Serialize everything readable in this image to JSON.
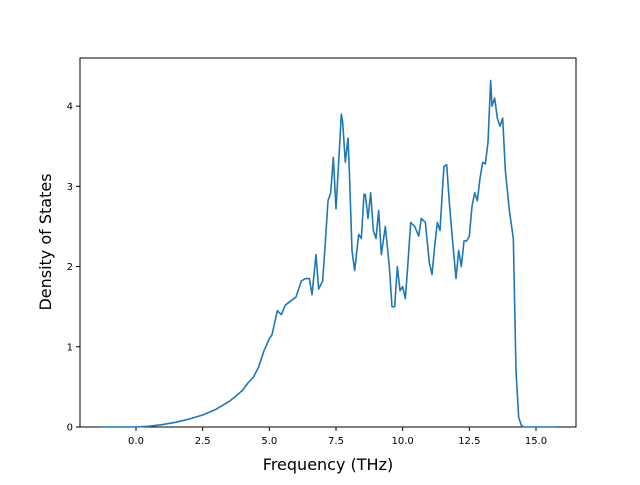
{
  "chart_data": {
    "type": "line",
    "title": "",
    "xlabel": "Frequency (THz)",
    "ylabel": "Density of States",
    "xlim": [
      -2.1,
      16.5
    ],
    "ylim": [
      0,
      4.6
    ],
    "xticks": [
      0,
      2.5,
      5,
      7.5,
      10,
      12.5,
      15
    ],
    "xtick_labels": [
      "0.0",
      "2.5",
      "5.0",
      "7.5",
      "10.0",
      "12.5",
      "15.0"
    ],
    "yticks": [
      0,
      1,
      2,
      3,
      4
    ],
    "ytick_labels": [
      "0",
      "1",
      "2",
      "3",
      "4"
    ],
    "grid": false,
    "series": [
      {
        "color": "#1f77b4",
        "x": [
          -1.3,
          -1.0,
          -0.5,
          0.0,
          0.5,
          1.0,
          1.5,
          2.0,
          2.5,
          3.0,
          3.5,
          3.8,
          4.0,
          4.2,
          4.4,
          4.6,
          4.8,
          5.0,
          5.1,
          5.2,
          5.3,
          5.45,
          5.6,
          5.8,
          6.0,
          6.2,
          6.35,
          6.5,
          6.6,
          6.75,
          6.85,
          7.0,
          7.1,
          7.2,
          7.3,
          7.4,
          7.5,
          7.6,
          7.7,
          7.75,
          7.85,
          7.95,
          8.0,
          8.1,
          8.2,
          8.35,
          8.45,
          8.55,
          8.6,
          8.7,
          8.8,
          8.9,
          9.0,
          9.1,
          9.2,
          9.35,
          9.5,
          9.6,
          9.7,
          9.8,
          9.9,
          10.0,
          10.1,
          10.2,
          10.3,
          10.45,
          10.6,
          10.7,
          10.85,
          11.0,
          11.1,
          11.2,
          11.3,
          11.4,
          11.5,
          11.55,
          11.65,
          11.75,
          11.85,
          12.0,
          12.1,
          12.2,
          12.3,
          12.4,
          12.5,
          12.6,
          12.7,
          12.8,
          12.9,
          13.0,
          13.1,
          13.2,
          13.3,
          13.35,
          13.45,
          13.55,
          13.65,
          13.75,
          13.85,
          14.0,
          14.15,
          14.25,
          14.35,
          14.45,
          14.55,
          14.7,
          15.0,
          15.4,
          15.8
        ],
        "y": [
          0,
          0,
          0,
          0,
          0.01,
          0.03,
          0.06,
          0.1,
          0.15,
          0.22,
          0.32,
          0.4,
          0.46,
          0.55,
          0.62,
          0.75,
          0.95,
          1.1,
          1.15,
          1.3,
          1.45,
          1.4,
          1.52,
          1.57,
          1.62,
          1.82,
          1.85,
          1.85,
          1.65,
          2.15,
          1.72,
          1.82,
          2.3,
          2.82,
          2.92,
          3.36,
          2.72,
          3.3,
          3.9,
          3.8,
          3.3,
          3.6,
          3.2,
          2.2,
          1.95,
          2.4,
          2.35,
          2.9,
          2.9,
          2.6,
          2.92,
          2.45,
          2.35,
          2.7,
          2.15,
          2.5,
          2.0,
          1.5,
          1.5,
          2.0,
          1.7,
          1.75,
          1.6,
          2.05,
          2.55,
          2.5,
          2.38,
          2.6,
          2.55,
          2.05,
          1.9,
          2.25,
          2.55,
          2.45,
          3.0,
          3.25,
          3.27,
          2.8,
          2.4,
          1.85,
          2.2,
          2.0,
          2.32,
          2.32,
          2.38,
          2.75,
          2.92,
          2.82,
          3.1,
          3.3,
          3.28,
          3.55,
          4.32,
          4.0,
          4.1,
          3.85,
          3.75,
          3.85,
          3.2,
          2.7,
          2.35,
          0.7,
          0.12,
          0.02,
          0,
          0,
          0,
          0,
          0
        ]
      }
    ]
  }
}
